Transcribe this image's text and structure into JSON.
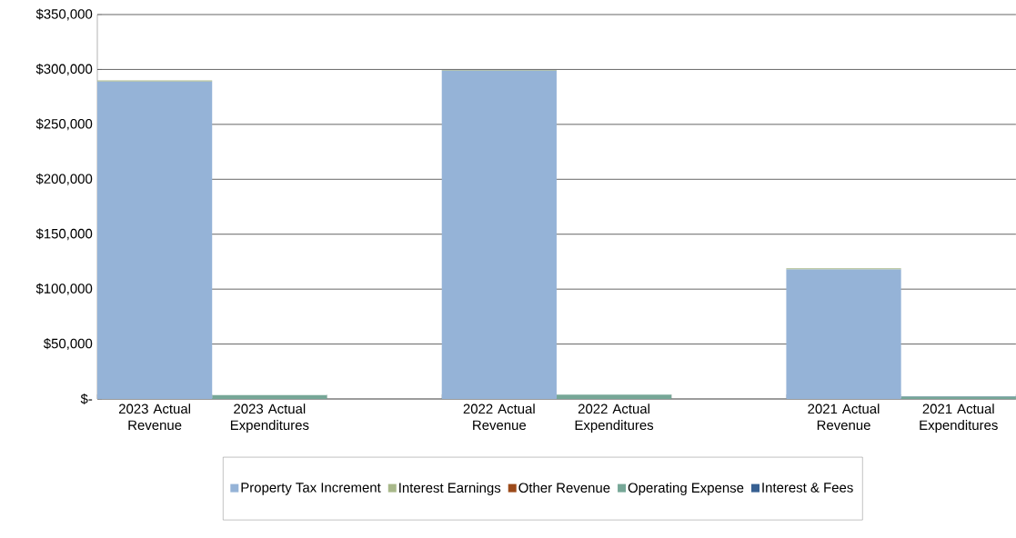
{
  "chart_data": {
    "type": "bar",
    "stacked": true,
    "categories": [
      "2023 Actual Revenue",
      "2023 Actual Expenditures",
      null,
      "2022 Actual Revenue",
      "2022 Actual Expenditures",
      null,
      "2021 Actual Revenue",
      "2021 Actual Expenditures"
    ],
    "series": [
      {
        "name": "Property Tax Increment",
        "color": "#95b3d7",
        "values": [
          289000,
          0,
          0,
          299000,
          0,
          0,
          118000,
          0
        ]
      },
      {
        "name": "Interest Earnings",
        "color": "#a8b88a",
        "values": [
          1000,
          0,
          0,
          500,
          0,
          0,
          1000,
          0
        ]
      },
      {
        "name": "Other Revenue",
        "color": "#9c4a1a",
        "values": [
          0,
          0,
          0,
          0,
          0,
          0,
          0,
          0
        ]
      },
      {
        "name": "Operating Expense",
        "color": "#76a797",
        "values": [
          0,
          3500,
          0,
          0,
          4000,
          0,
          0,
          2000
        ]
      },
      {
        "name": "Interest & Fees",
        "color": "#376092",
        "values": [
          0,
          0,
          0,
          0,
          0,
          0,
          0,
          500
        ]
      }
    ],
    "ylim": [
      0,
      350000
    ],
    "yticks": [
      {
        "value": 0,
        "label": "$-"
      },
      {
        "value": 50000,
        "label": "$50,000"
      },
      {
        "value": 100000,
        "label": "$100,000"
      },
      {
        "value": 150000,
        "label": "$150,000"
      },
      {
        "value": 200000,
        "label": "$200,000"
      },
      {
        "value": 250000,
        "label": "$250,000"
      },
      {
        "value": 300000,
        "label": "$300,000"
      },
      {
        "value": 350000,
        "label": "$350,000"
      }
    ],
    "grid": "y",
    "legend": "bottom"
  }
}
